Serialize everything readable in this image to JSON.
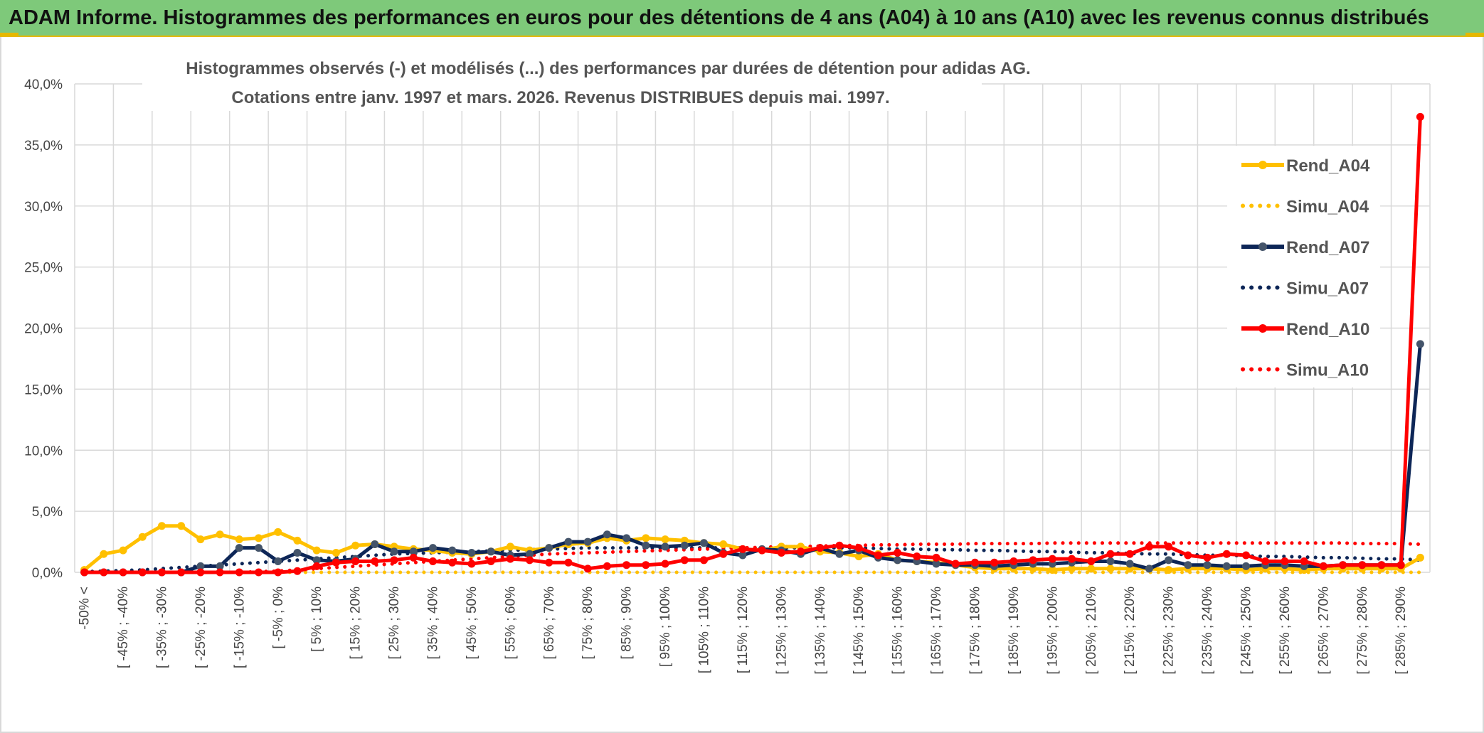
{
  "banner": {
    "title": "ADAM Informe. Histogrammes des performances en euros pour des détentions de 4 ans (A04) à 10 ans (A10) avec les revenus connus distribués"
  },
  "colors": {
    "banner_bg": "#7ec97a",
    "accent": "#e5b800",
    "A04": "#ffc000",
    "A07": "#0d2657",
    "A10": "#ff0000"
  },
  "chart_data": {
    "type": "line",
    "title_lines": [
      "Histogrammes observés (-) et modélisés (...) des performances par durées de détention pour adidas AG.",
      "Cotations entre janv. 1997 et mars. 2026. Revenus DISTRIBUES depuis mai. 1997."
    ],
    "ylim": [
      0,
      40
    ],
    "yticks": [
      "0,0%",
      "5,0%",
      "10,0%",
      "15,0%",
      "20,0%",
      "25,0%",
      "30,0%",
      "35,0%",
      "40,0%"
    ],
    "category_count": 70,
    "tick_labels": [
      {
        "i": 0,
        "label": "-50% <"
      },
      {
        "i": 2,
        "label": "[ -45% ; -40%"
      },
      {
        "i": 4,
        "label": "[ -35% ; -30%"
      },
      {
        "i": 6,
        "label": "[ -25% ; -20%"
      },
      {
        "i": 8,
        "label": "[ -15% ; -10%"
      },
      {
        "i": 10,
        "label": "[ -5% ; 0%"
      },
      {
        "i": 12,
        "label": "[ 5% ; 10%"
      },
      {
        "i": 14,
        "label": "[ 15% ; 20%"
      },
      {
        "i": 16,
        "label": "[ 25% ; 30%"
      },
      {
        "i": 18,
        "label": "[ 35% ; 40%"
      },
      {
        "i": 20,
        "label": "[ 45% ; 50%"
      },
      {
        "i": 22,
        "label": "[ 55% ; 60%"
      },
      {
        "i": 24,
        "label": "[ 65% ; 70%"
      },
      {
        "i": 26,
        "label": "[ 75% ; 80%"
      },
      {
        "i": 28,
        "label": "[ 85% ; 90%"
      },
      {
        "i": 30,
        "label": "[ 95% ; 100%"
      },
      {
        "i": 32,
        "label": "[ 105% ; 110%"
      },
      {
        "i": 34,
        "label": "[ 115% ; 120%"
      },
      {
        "i": 36,
        "label": "[ 125% ; 130%"
      },
      {
        "i": 38,
        "label": "[ 135% ; 140%"
      },
      {
        "i": 40,
        "label": "[ 145% ; 150%"
      },
      {
        "i": 42,
        "label": "[ 155% ; 160%"
      },
      {
        "i": 44,
        "label": "[ 165% ; 170%"
      },
      {
        "i": 46,
        "label": "[ 175% ; 180%"
      },
      {
        "i": 48,
        "label": "[ 185% ; 190%"
      },
      {
        "i": 50,
        "label": "[ 195% ; 200%"
      },
      {
        "i": 52,
        "label": "[ 205% ; 210%"
      },
      {
        "i": 54,
        "label": "[ 215% ; 220%"
      },
      {
        "i": 56,
        "label": "[ 225% ; 230%"
      },
      {
        "i": 58,
        "label": "[ 235% ; 240%"
      },
      {
        "i": 60,
        "label": "[ 245% ; 250%"
      },
      {
        "i": 62,
        "label": "[ 255% ; 260%"
      },
      {
        "i": 64,
        "label": "[ 265% ; 270%"
      },
      {
        "i": 66,
        "label": "[ 275% ; 280%"
      },
      {
        "i": 68,
        "label": "[ 285% ; 290%"
      }
    ],
    "series": [
      {
        "name": "Rend_A04",
        "style": "solid",
        "color": "#ffc000",
        "values": [
          0.2,
          1.5,
          1.8,
          2.9,
          3.8,
          3.8,
          2.7,
          3.1,
          2.7,
          2.8,
          3.3,
          2.6,
          1.8,
          1.6,
          2.2,
          2.3,
          2.1,
          1.9,
          1.8,
          1.6,
          1.5,
          1.7,
          2.1,
          1.8,
          2.0,
          2.3,
          2.4,
          2.8,
          2.6,
          2.8,
          2.7,
          2.6,
          2.4,
          2.3,
          1.9,
          1.8,
          2.1,
          2.1,
          1.7,
          1.6,
          1.3,
          1.5,
          1.0,
          0.9,
          0.8,
          0.6,
          0.4,
          0.3,
          0.3,
          0.3,
          0.2,
          0.3,
          0.3,
          0.3,
          0.3,
          0.3,
          0.2,
          0.3,
          0.3,
          0.3,
          0.2,
          0.3,
          0.3,
          0.2,
          0.3,
          0.3,
          0.3,
          0.3,
          0.3,
          1.2
        ]
      },
      {
        "name": "Simu_A04",
        "style": "dotted",
        "color": "#ffc000",
        "values": [
          0,
          0,
          0,
          0,
          0,
          0,
          0,
          0,
          0,
          0,
          0,
          0,
          0,
          0,
          0,
          0,
          0,
          0,
          0,
          0,
          0,
          0,
          0,
          0,
          0,
          0,
          0,
          0,
          0,
          0,
          0,
          0,
          0,
          0,
          0,
          0,
          0,
          0,
          0,
          0,
          0,
          0,
          0,
          0,
          0,
          0,
          0,
          0,
          0,
          0,
          0,
          0,
          0,
          0,
          0,
          0,
          0,
          0,
          0,
          0,
          0,
          0,
          0,
          0,
          0,
          0,
          0,
          0,
          0,
          0
        ]
      },
      {
        "name": "Rend_A07",
        "style": "solid",
        "color": "#0d2657",
        "values": [
          0,
          0,
          0,
          0,
          0,
          0,
          0.5,
          0.5,
          2.0,
          2.0,
          0.9,
          1.6,
          1.0,
          0.9,
          1.1,
          2.3,
          1.7,
          1.7,
          2.0,
          1.8,
          1.6,
          1.7,
          1.4,
          1.5,
          2.0,
          2.5,
          2.5,
          3.1,
          2.8,
          2.2,
          2.1,
          2.2,
          2.4,
          1.6,
          1.4,
          1.9,
          1.8,
          1.5,
          2.0,
          1.5,
          1.8,
          1.2,
          1.0,
          0.9,
          0.7,
          0.6,
          0.6,
          0.5,
          0.6,
          0.7,
          0.7,
          0.8,
          0.9,
          0.9,
          0.7,
          0.3,
          1.0,
          0.6,
          0.6,
          0.5,
          0.5,
          0.6,
          0.6,
          0.5,
          0.5,
          0.6,
          0.6,
          0.6,
          0.6,
          18.7
        ]
      },
      {
        "name": "Simu_A07",
        "style": "dotted",
        "color": "#0d2657",
        "values": [
          0.05,
          0.1,
          0.15,
          0.2,
          0.3,
          0.4,
          0.5,
          0.6,
          0.7,
          0.8,
          0.9,
          1.0,
          1.1,
          1.2,
          1.3,
          1.4,
          1.5,
          1.55,
          1.6,
          1.65,
          1.7,
          1.75,
          1.8,
          1.85,
          1.9,
          1.95,
          2.0,
          2.0,
          2.0,
          2.0,
          2.0,
          2.0,
          2.0,
          2.0,
          2.0,
          2.0,
          2.0,
          2.0,
          2.0,
          2.0,
          2.0,
          1.95,
          1.9,
          1.9,
          1.85,
          1.85,
          1.8,
          1.8,
          1.75,
          1.7,
          1.7,
          1.65,
          1.6,
          1.6,
          1.55,
          1.5,
          1.5,
          1.45,
          1.4,
          1.4,
          1.35,
          1.3,
          1.3,
          1.25,
          1.2,
          1.2,
          1.15,
          1.1,
          1.1,
          1.0
        ]
      },
      {
        "name": "Rend_A10",
        "style": "solid",
        "color": "#ff0000",
        "values": [
          0,
          0,
          0,
          0,
          0,
          0,
          0,
          0,
          0,
          0,
          0,
          0.1,
          0.5,
          0.8,
          0.9,
          0.9,
          1.0,
          1.2,
          0.9,
          0.8,
          0.7,
          0.9,
          1.1,
          1.0,
          0.8,
          0.8,
          0.3,
          0.5,
          0.6,
          0.6,
          0.7,
          1.0,
          1.0,
          1.5,
          1.9,
          1.8,
          1.6,
          1.7,
          2.0,
          2.2,
          2.0,
          1.4,
          1.6,
          1.3,
          1.2,
          0.7,
          0.8,
          0.8,
          0.9,
          1.0,
          1.1,
          1.1,
          0.9,
          1.5,
          1.5,
          2.1,
          2.1,
          1.4,
          1.2,
          1.5,
          1.4,
          0.9,
          0.9,
          0.9,
          0.5,
          0.6,
          0.6,
          0.6,
          0.6,
          37.3
        ]
      },
      {
        "name": "Simu_A10",
        "style": "dotted",
        "color": "#ff0000",
        "values": [
          0,
          0,
          0,
          0,
          0,
          0,
          0,
          0,
          0,
          0.05,
          0.1,
          0.2,
          0.3,
          0.4,
          0.5,
          0.6,
          0.7,
          0.8,
          0.9,
          1.0,
          1.1,
          1.2,
          1.3,
          1.4,
          1.5,
          1.55,
          1.6,
          1.65,
          1.7,
          1.75,
          1.8,
          1.85,
          1.9,
          1.95,
          2.0,
          2.05,
          2.1,
          2.1,
          2.15,
          2.2,
          2.2,
          2.25,
          2.25,
          2.3,
          2.3,
          2.3,
          2.35,
          2.35,
          2.35,
          2.35,
          2.4,
          2.4,
          2.4,
          2.4,
          2.4,
          2.4,
          2.4,
          2.4,
          2.4,
          2.4,
          2.4,
          2.4,
          2.4,
          2.4,
          2.4,
          2.4,
          2.35,
          2.35,
          2.35,
          2.3
        ]
      }
    ],
    "legend": {
      "placement": "right",
      "entries": [
        {
          "label": "Rend_A04",
          "style": "solid",
          "color": "#ffc000"
        },
        {
          "label": "Simu_A04",
          "style": "dotted",
          "color": "#ffc000"
        },
        {
          "label": "Rend_A07",
          "style": "solid",
          "color": "#0d2657"
        },
        {
          "label": "Simu_A07",
          "style": "dotted",
          "color": "#0d2657"
        },
        {
          "label": "Rend_A10",
          "style": "solid",
          "color": "#ff0000"
        },
        {
          "label": "Simu_A10",
          "style": "dotted",
          "color": "#ff0000"
        }
      ]
    }
  }
}
